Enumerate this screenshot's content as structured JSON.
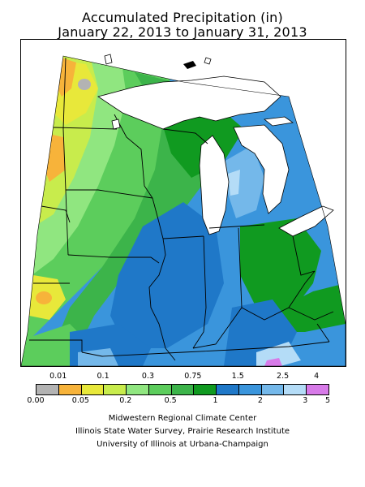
{
  "title": {
    "line1": "Accumulated Precipitation (in)",
    "line2": "January 22, 2013 to January 31, 2013"
  },
  "map": {
    "region": "Midwest United States",
    "colors": {
      "gray": "#b3b3b3",
      "orange": "#f7b33a",
      "yellow": "#e8e83a",
      "yellow_green": "#c8ec4c",
      "light_green": "#90e680",
      "green": "#5ccd5c",
      "mid_green": "#3cb44a",
      "dark_green": "#109a20",
      "blue": "#1f78c8",
      "mid_blue": "#3a95dc",
      "light_blue": "#74b8ea",
      "pale_blue": "#b4dcf7",
      "violet": "#d77ae8",
      "water": "#ffffff",
      "boundary": "#000000"
    }
  },
  "legend": {
    "upper_labels": [
      "0.01",
      "0.1",
      "0.3",
      "0.75",
      "1.5",
      "2.5",
      "4"
    ],
    "lower_labels": [
      "0.00",
      "0.05",
      "0.2",
      "0.5",
      "1",
      "2",
      "3",
      "5"
    ],
    "swatch_colors": [
      "#b3b3b3",
      "#f7b33a",
      "#e8e83a",
      "#c8ec4c",
      "#90e680",
      "#5ccd5c",
      "#3cb44a",
      "#109a20",
      "#1f78c8",
      "#3a95dc",
      "#74b8ea",
      "#b4dcf7",
      "#d77ae8"
    ]
  },
  "credits": {
    "line1": "Midwestern Regional Climate Center",
    "line2": "Illinois State Water Survey, Prairie Research Institute",
    "line3": "University of Illinois at Urbana-Champaign"
  }
}
